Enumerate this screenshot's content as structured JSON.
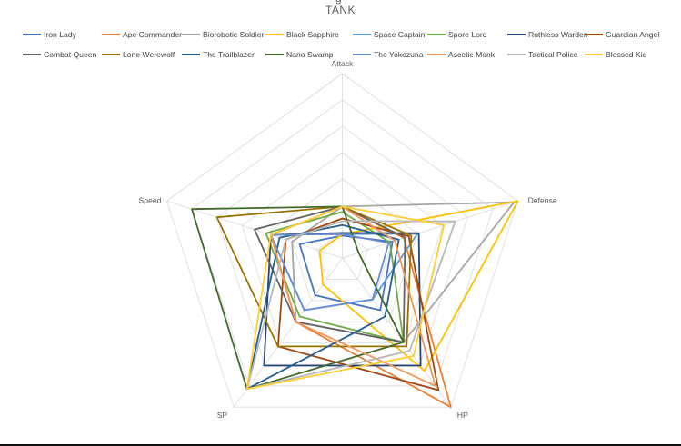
{
  "decoration": {
    "partial_text_above_title": "g"
  },
  "window": {
    "bottom_border_color": "#111111"
  },
  "chart_data": {
    "type": "radar",
    "title": "TANK",
    "title_color": "#595959",
    "axes": [
      "Attack",
      "Defense",
      "HP",
      "SP",
      "Speed"
    ],
    "axis_label_color": "#595959",
    "legend_position": "top",
    "legend_text_color": "#404040",
    "grid": true,
    "grid_color": "#D9D9D9",
    "scale": {
      "min": 0,
      "max": 140,
      "grid_levels": 7,
      "grid_step": 20
    },
    "series": [
      {
        "name": "Iron Lady",
        "color": "#4472C4",
        "values": [
          17,
          40,
          49,
          35,
          34
        ]
      },
      {
        "name": "Ape Commander",
        "color": "#ED7D31",
        "values": [
          39,
          49,
          140,
          60,
          57
        ]
      },
      {
        "name": "Biorobotic Soldier",
        "color": "#A5A5A5",
        "values": [
          39,
          137,
          79,
          60,
          40
        ]
      },
      {
        "name": "Black Sapphire",
        "color": "#FFC000",
        "values": [
          18,
          140,
          106,
          25,
          18
        ]
      },
      {
        "name": "Space Captain",
        "color": "#5B9BD5",
        "values": [
          18,
          60,
          39,
          49,
          57
        ]
      },
      {
        "name": "Spore Lord",
        "color": "#70AD47",
        "values": [
          35,
          38,
          79,
          55,
          61
        ]
      },
      {
        "name": "Ruthless Warden",
        "color": "#264478",
        "values": [
          19,
          61,
          101,
          101,
          57
        ]
      },
      {
        "name": "Guardian Angel",
        "color": "#9E480E",
        "values": [
          30,
          53,
          124,
          83,
          45
        ]
      },
      {
        "name": "Combat Queen",
        "color": "#636363",
        "values": [
          39,
          50,
          79,
          60,
          70
        ]
      },
      {
        "name": "Lone Werewolf",
        "color": "#997300",
        "values": [
          39,
          55,
          83,
          83,
          100
        ]
      },
      {
        "name": "The Trailblazer",
        "color": "#255E91",
        "values": [
          25,
          45,
          55,
          123,
          50
        ]
      },
      {
        "name": "Nano Swamp",
        "color": "#43682B",
        "values": [
          39,
          13,
          79,
          123,
          120
        ]
      },
      {
        "name": "The Yokozuna",
        "color": "#698ED0",
        "values": [
          18,
          37,
          39,
          49,
          57
        ]
      },
      {
        "name": "Ascetic Monk",
        "color": "#F1975A",
        "values": [
          39,
          42,
          120,
          60,
          57
        ]
      },
      {
        "name": "Tactical Police",
        "color": "#B7B7B7",
        "values": [
          28,
          90,
          87,
          123,
          45
        ]
      },
      {
        "name": "Blessed Kid",
        "color": "#FFCD33",
        "values": [
          39,
          81,
          92,
          123,
          57
        ]
      }
    ]
  }
}
